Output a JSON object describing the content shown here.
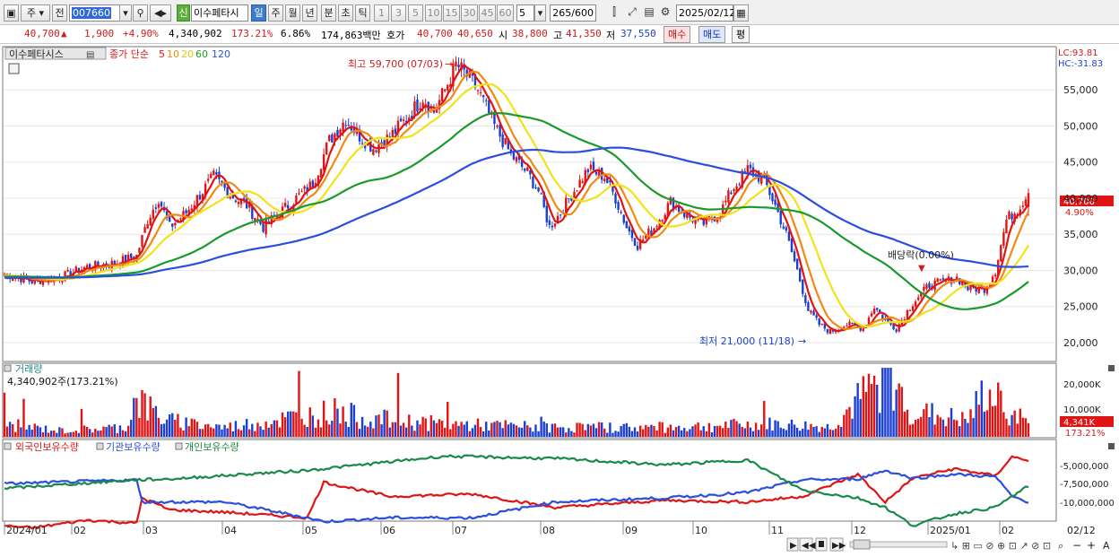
{
  "toolbar": {
    "market": "주",
    "prev": "전",
    "stock_code": "007660",
    "stock_name": "이수페타시",
    "sin": "신",
    "periods": [
      "일",
      "주",
      "월",
      "년",
      "분",
      "초",
      "틱"
    ],
    "active_period": "일",
    "intervals": [
      "1",
      "3",
      "5",
      "10",
      "15",
      "30",
      "45",
      "60"
    ],
    "interval_value": "5",
    "count_value": "265",
    "count_total": "/600",
    "date": "2025/02/12"
  },
  "quote": {
    "price": "40,700",
    "arrow": "▲",
    "change": "1,900",
    "change_pct": "+4.90%",
    "volume": "4,340,902",
    "volume_pct": "173.21%",
    "turnover": "6.86%",
    "amount": "174,863백만",
    "ask_label": "호가",
    "ask": "40,700",
    "bid": "40,650",
    "open_label": "시",
    "open": "38,800",
    "high_label": "고",
    "high": "41,350",
    "low_label": "저",
    "low": "37,550",
    "buy_label": "매수",
    "sell_label": "매도",
    "flat_label": "평"
  },
  "price_panel": {
    "title_name": "이수페타시스",
    "ma_label": "종가 단순",
    "ma_periods": [
      "5",
      "10",
      "20",
      "60",
      "120"
    ],
    "ma_colors": [
      "#e01414",
      "#f08a14",
      "#f2e21a",
      "#1a9a2a",
      "#2a4ee0"
    ],
    "lc": "LC:93.81",
    "hc": "HC:-31.83",
    "high_note": "최고 59,700 (07/03)",
    "low_note": "최저 21,000 (11/18)",
    "dividend_note": "배당락(0.00%)",
    "last_price_tag": "40,700",
    "last_pct_tag": "4.90%",
    "y_ticks": [
      "55,000",
      "50,000",
      "45,000",
      "40,000",
      "35,000",
      "30,000",
      "25,000",
      "20,000"
    ]
  },
  "volume_panel": {
    "title": "거래량",
    "value": "4,340,902주(173.21%)",
    "y_ticks": [
      "20,000K",
      "10,000K"
    ],
    "last_tag": "4,341K",
    "last_pct": "173.21%"
  },
  "holdings_panel": {
    "series": [
      "외국인보유수량",
      "기관보유수량",
      "개인보유수량"
    ],
    "y_ticks": [
      "-5,000,000",
      "-7,500,000",
      "-10,000,000"
    ]
  },
  "x_axis": {
    "labels": [
      "2024/01",
      "02",
      "03",
      "04",
      "05",
      "06",
      "07",
      "08",
      "09",
      "10",
      "11",
      "12",
      "2025/01",
      "02"
    ],
    "right_label": "02/12"
  },
  "chart_data": {
    "type": "candlestick",
    "x_start": "2024/01",
    "x_end": "2025/02/12",
    "price_ylim": [
      19000,
      60000
    ],
    "highest": {
      "value": 59700,
      "date": "07/03"
    },
    "lowest": {
      "value": 21000,
      "date": "11/18"
    },
    "last": {
      "open": 38800,
      "high": 41350,
      "low": 37550,
      "close": 40700
    },
    "close_anchors": [
      [
        0,
        29500
      ],
      [
        10,
        28500
      ],
      [
        20,
        29000
      ],
      [
        30,
        30500
      ],
      [
        40,
        31000
      ],
      [
        48,
        32000
      ],
      [
        52,
        37000
      ],
      [
        56,
        40000
      ],
      [
        60,
        36000
      ],
      [
        66,
        38000
      ],
      [
        72,
        41000
      ],
      [
        76,
        43000
      ],
      [
        82,
        40500
      ],
      [
        88,
        39000
      ],
      [
        94,
        36000
      ],
      [
        100,
        38000
      ],
      [
        106,
        40000
      ],
      [
        112,
        42000
      ],
      [
        118,
        48000
      ],
      [
        124,
        51000
      ],
      [
        128,
        49000
      ],
      [
        134,
        47000
      ],
      [
        140,
        48500
      ],
      [
        146,
        51000
      ],
      [
        152,
        54000
      ],
      [
        156,
        52000
      ],
      [
        160,
        55000
      ],
      [
        164,
        58500
      ],
      [
        168,
        57000
      ],
      [
        172,
        55000
      ],
      [
        178,
        50000
      ],
      [
        184,
        46000
      ],
      [
        190,
        43500
      ],
      [
        194,
        41000
      ],
      [
        198,
        36000
      ],
      [
        202,
        38000
      ],
      [
        206,
        40500
      ],
      [
        212,
        44000
      ],
      [
        218,
        43000
      ],
      [
        222,
        40000
      ],
      [
        226,
        36000
      ],
      [
        230,
        33500
      ],
      [
        236,
        36000
      ],
      [
        242,
        39500
      ],
      [
        248,
        37500
      ],
      [
        254,
        36500
      ],
      [
        260,
        38000
      ],
      [
        264,
        41000
      ],
      [
        270,
        44000
      ],
      [
        276,
        42500
      ],
      [
        280,
        39000
      ],
      [
        284,
        35000
      ],
      [
        288,
        30000
      ],
      [
        292,
        24500
      ],
      [
        296,
        22500
      ],
      [
        300,
        21500
      ],
      [
        306,
        22500
      ],
      [
        312,
        22000
      ],
      [
        316,
        25000
      ],
      [
        320,
        23000
      ],
      [
        324,
        22000
      ],
      [
        330,
        25500
      ],
      [
        336,
        28000
      ],
      [
        342,
        28500
      ],
      [
        346,
        29000
      ],
      [
        350,
        27500
      ],
      [
        356,
        27500
      ],
      [
        360,
        30000
      ],
      [
        364,
        37000
      ],
      [
        368,
        38500
      ],
      [
        372,
        40700
      ]
    ],
    "volume_anchors": [
      [
        0,
        4
      ],
      [
        20,
        2
      ],
      [
        44,
        3
      ],
      [
        48,
        13
      ],
      [
        52,
        9
      ],
      [
        60,
        5
      ],
      [
        80,
        3
      ],
      [
        120,
        8
      ],
      [
        130,
        6
      ],
      [
        160,
        4
      ],
      [
        200,
        3
      ],
      [
        240,
        3
      ],
      [
        280,
        4
      ],
      [
        300,
        3
      ],
      [
        320,
        19
      ],
      [
        330,
        8
      ],
      [
        350,
        5
      ],
      [
        356,
        14
      ],
      [
        372,
        4.34
      ]
    ],
    "holdings": {
      "foreign": [
        [
          0,
          -12.5
        ],
        [
          10,
          -12.8
        ],
        [
          30,
          -11.8
        ],
        [
          48,
          -12.2
        ],
        [
          50,
          -9.0
        ],
        [
          60,
          -10.5
        ],
        [
          80,
          -10.8
        ],
        [
          110,
          -11.5
        ],
        [
          116,
          -7.0
        ],
        [
          140,
          -8.8
        ],
        [
          170,
          -8.5
        ],
        [
          200,
          -10.2
        ],
        [
          240,
          -9.3
        ],
        [
          270,
          -9.5
        ],
        [
          290,
          -8.8
        ],
        [
          310,
          -6.0
        ],
        [
          320,
          -9.5
        ],
        [
          330,
          -6.5
        ],
        [
          345,
          -5.3
        ],
        [
          360,
          -6.2
        ],
        [
          366,
          -3.8
        ],
        [
          372,
          -4.2
        ]
      ],
      "institution": [
        [
          0,
          -7.2
        ],
        [
          48,
          -6.7
        ],
        [
          50,
          -9.5
        ],
        [
          80,
          -9.5
        ],
        [
          110,
          -11.5
        ],
        [
          116,
          -12.0
        ],
        [
          140,
          -11.5
        ],
        [
          170,
          -11.5
        ],
        [
          200,
          -9.5
        ],
        [
          240,
          -9.0
        ],
        [
          270,
          -8.3
        ],
        [
          290,
          -6.7
        ],
        [
          310,
          -6.6
        ],
        [
          320,
          -5.5
        ],
        [
          330,
          -6.5
        ],
        [
          345,
          -6.0
        ],
        [
          360,
          -6.3
        ],
        [
          366,
          -8.8
        ],
        [
          372,
          -9.5
        ]
      ],
      "individual": [
        [
          0,
          -7.8
        ],
        [
          48,
          -6.7
        ],
        [
          60,
          -6.6
        ],
        [
          110,
          -5.5
        ],
        [
          160,
          -3.7
        ],
        [
          200,
          -4.0
        ],
        [
          240,
          -4.8
        ],
        [
          270,
          -4.2
        ],
        [
          290,
          -8.0
        ],
        [
          310,
          -9.0
        ],
        [
          320,
          -10.2
        ],
        [
          330,
          -12.5
        ],
        [
          345,
          -11.0
        ],
        [
          360,
          -10.2
        ],
        [
          366,
          -8.8
        ],
        [
          372,
          -7.5
        ]
      ]
    }
  }
}
